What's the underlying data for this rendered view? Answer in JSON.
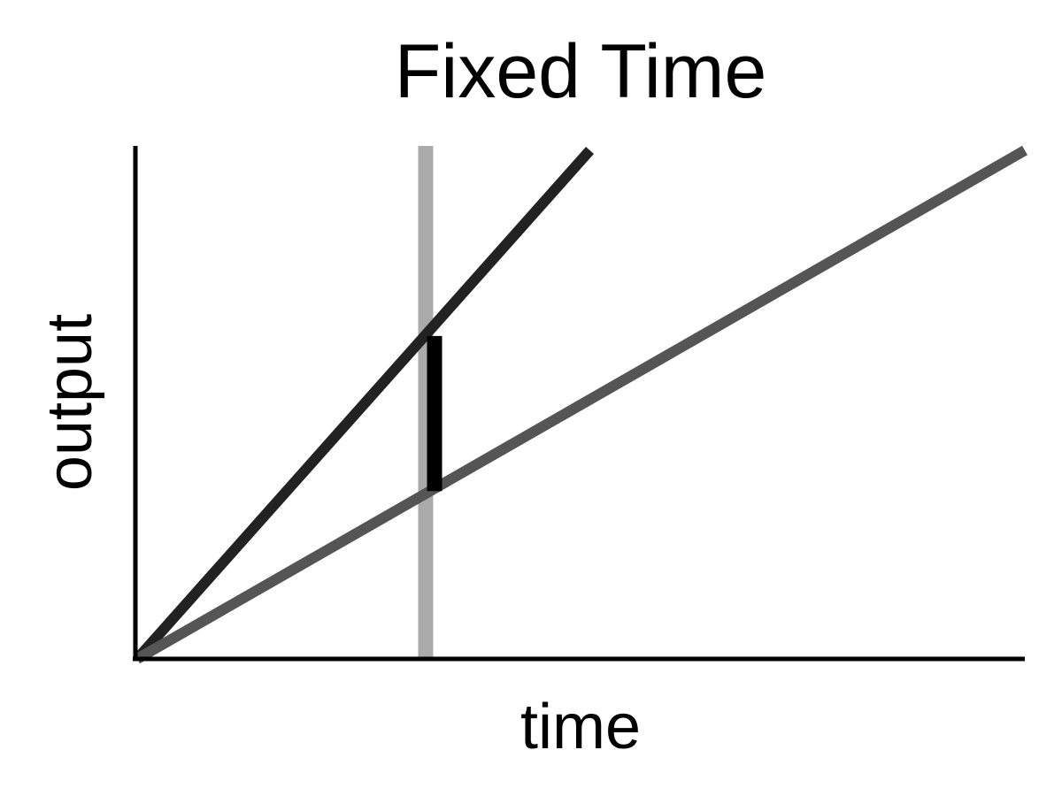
{
  "chart_data": {
    "type": "line",
    "title": "Fixed Time",
    "xlabel": "time",
    "ylabel": "output",
    "xlim": [
      0,
      1
    ],
    "ylim": [
      0,
      1
    ],
    "grid": false,
    "show_ticks": false,
    "series": [
      {
        "values": [
          [
            0,
            0
          ],
          [
            0.51,
            1.0
          ]
        ],
        "color": "#222222"
      },
      {
        "values": [
          [
            0,
            0
          ],
          [
            1.0,
            1.0
          ]
        ],
        "color": "#555555"
      }
    ],
    "marker_line": {
      "x": 0.325,
      "color": "#aaaaaa"
    },
    "difference_bar": {
      "x": 0.335,
      "y_low": 0.33,
      "y_high": 0.635,
      "color": "#000000"
    }
  }
}
